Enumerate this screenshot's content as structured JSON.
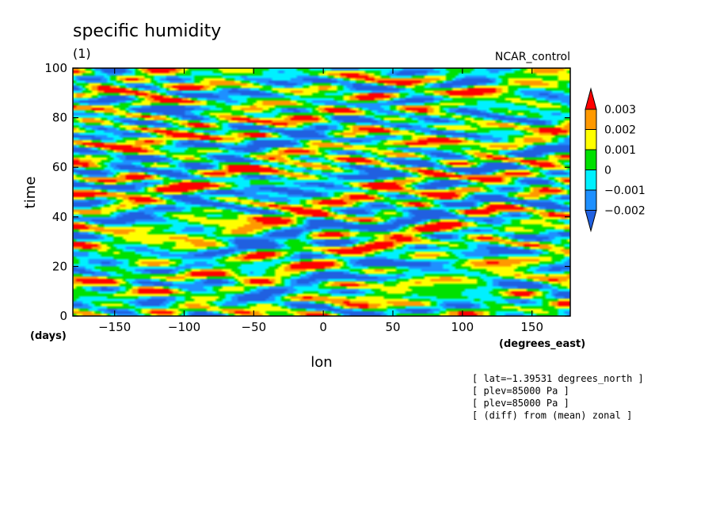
{
  "chart_data": {
    "type": "heatmap",
    "title": "specific humidity",
    "subtitle": "(1)",
    "dataset_label": "NCAR_control",
    "xlabel": "lon",
    "ylabel": "time",
    "x_units": "(degrees_east)",
    "y_units": "(days)",
    "xlim": [
      -180,
      177.5
    ],
    "ylim": [
      0,
      100
    ],
    "x_ticks": [
      -150,
      -100,
      -50,
      0,
      50,
      100,
      150
    ],
    "x_tick_labels": [
      "−150",
      "−100",
      "−50",
      "0",
      "50",
      "100",
      "150"
    ],
    "y_ticks": [
      0,
      20,
      40,
      60,
      80,
      100
    ],
    "y_tick_labels": [
      "0",
      "20",
      "40",
      "60",
      "80",
      "100"
    ],
    "contour_levels": [
      -0.002,
      -0.001,
      0,
      0.001,
      0.002,
      0.003
    ],
    "colorbar_labels": [
      "−0.002",
      "−0.001",
      "0",
      "0.001",
      "0.002",
      "0.003"
    ],
    "colorbar_colors": [
      "#2060e0",
      "#1e90ff",
      "#00f0ff",
      "#00e000",
      "#ffff00",
      "#ff9900",
      "#ff0000"
    ],
    "grid": false,
    "notes": [
      "[ lat=−1.39531 degrees_north ]",
      "[ plev=85000 Pa ]",
      "[ plev=85000 Pa ]",
      "[ (diff) from (mean) zonal ]"
    ]
  }
}
